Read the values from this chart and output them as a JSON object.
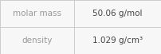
{
  "rows": [
    {
      "label": "molar mass",
      "value": "50.06 g/mol"
    },
    {
      "label": "density",
      "value": "1.029 g/cm³"
    }
  ],
  "background_color": "#f7f7f7",
  "cell_background": "#f7f7f7",
  "border_color": "#cccccc",
  "label_fontsize": 7.5,
  "value_fontsize": 7.5,
  "label_color": "#999999",
  "value_color": "#444444",
  "col_split": 0.46
}
